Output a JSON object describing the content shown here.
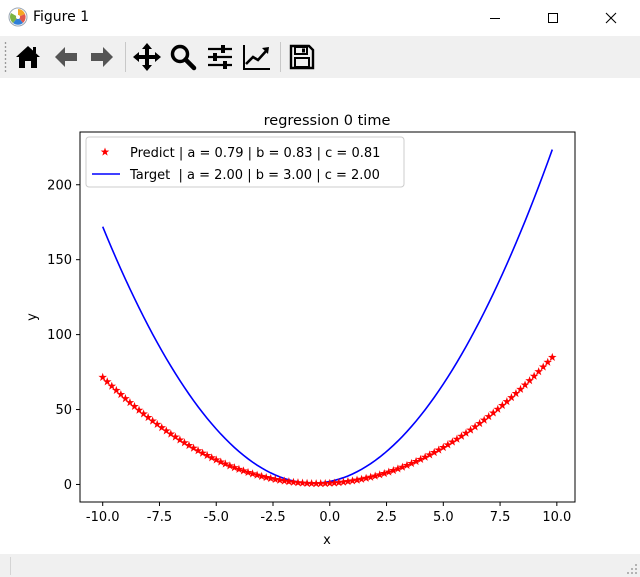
{
  "window": {
    "title": "Figure 1",
    "controls": [
      "minimize",
      "maximize",
      "close"
    ]
  },
  "toolbar": {
    "items": [
      {
        "name": "home-icon",
        "tooltip": "Home"
      },
      {
        "name": "back-arrow-icon",
        "tooltip": "Back"
      },
      {
        "name": "forward-arrow-icon",
        "tooltip": "Forward"
      },
      {
        "name": "pan-icon",
        "tooltip": "Pan"
      },
      {
        "name": "zoom-icon",
        "tooltip": "Zoom"
      },
      {
        "name": "subplots-icon",
        "tooltip": "Subplots"
      },
      {
        "name": "edit-axis-icon",
        "tooltip": "Customize"
      },
      {
        "name": "save-icon",
        "tooltip": "Save"
      }
    ]
  },
  "chart_data": {
    "type": "line",
    "title": "regression 0 time",
    "xlabel": "x",
    "ylabel": "y",
    "xlim": [
      -11.0,
      10.8
    ],
    "ylim": [
      -11.7,
      235.2
    ],
    "xticks": [
      "-10.0",
      "-7.5",
      "-5.0",
      "-2.5",
      "0.0",
      "2.5",
      "5.0",
      "7.5",
      "10.0"
    ],
    "xtick_values": [
      -10,
      -7.5,
      -5,
      -2.5,
      0,
      2.5,
      5,
      7.5,
      10
    ],
    "yticks": [
      "0",
      "50",
      "100",
      "150",
      "200"
    ],
    "ytick_values": [
      0,
      50,
      100,
      150,
      200
    ],
    "x_range": {
      "start": -10,
      "stop": 9.8,
      "step": 0.2
    },
    "legend_position": "upper-left",
    "grid": false,
    "series": [
      {
        "name": "Predict | a = 0.79 | b = 0.83 | c = 0.81",
        "style": "star-markers",
        "color": "#ff0000",
        "coefficients": {
          "a": 0.79,
          "b": 0.83,
          "c": 0.81
        }
      },
      {
        "name": "Target  | a = 2.00 | b = 3.00 | c = 2.00",
        "style": "line",
        "color": "#0000ff",
        "coefficients": {
          "a": 2.0,
          "b": 3.0,
          "c": 2.0
        }
      }
    ]
  }
}
